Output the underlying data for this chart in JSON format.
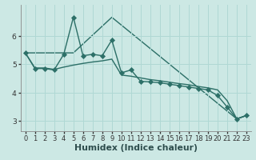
{
  "xlabel": "Humidex (Indice chaleur)",
  "bg_color": "#cce8e4",
  "grid_color": "#b0d8d4",
  "line_color": "#2d7068",
  "xlim": [
    -0.5,
    23.5
  ],
  "ylim": [
    2.65,
    7.1
  ],
  "xticks": [
    0,
    1,
    2,
    3,
    4,
    5,
    6,
    7,
    8,
    9,
    10,
    11,
    12,
    13,
    14,
    15,
    16,
    17,
    18,
    19,
    20,
    21,
    22,
    23
  ],
  "yticks": [
    3,
    4,
    5,
    6
  ],
  "line1_x": [
    0,
    1,
    2,
    3,
    4,
    5,
    6,
    7,
    8,
    9,
    10,
    11,
    12,
    13,
    14,
    15,
    16,
    17,
    18,
    19,
    20,
    21,
    22,
    23
  ],
  "line1_y": [
    5.4,
    4.85,
    4.85,
    4.8,
    5.35,
    6.65,
    5.3,
    5.35,
    5.3,
    5.85,
    4.7,
    4.8,
    4.4,
    4.38,
    4.35,
    4.3,
    4.25,
    4.2,
    4.15,
    4.1,
    3.9,
    3.5,
    3.08,
    3.2
  ],
  "line2_x": [
    0,
    1,
    2,
    3,
    4,
    5,
    6,
    7,
    8,
    9,
    10,
    11,
    12,
    13,
    14,
    15,
    16,
    17,
    18,
    19,
    20,
    21,
    22,
    23
  ],
  "line2_y": [
    5.4,
    4.87,
    4.87,
    4.82,
    4.9,
    4.97,
    5.03,
    5.08,
    5.12,
    5.18,
    4.62,
    4.58,
    4.52,
    4.46,
    4.42,
    4.37,
    4.32,
    4.28,
    4.22,
    4.17,
    4.1,
    3.72,
    3.08,
    3.2
  ],
  "line3_x": [
    0,
    5,
    9,
    22,
    23
  ],
  "line3_y": [
    5.4,
    5.4,
    6.65,
    3.08,
    3.2
  ],
  "figwidth": 2.67,
  "figheight": 1.67,
  "dpi": 120
}
